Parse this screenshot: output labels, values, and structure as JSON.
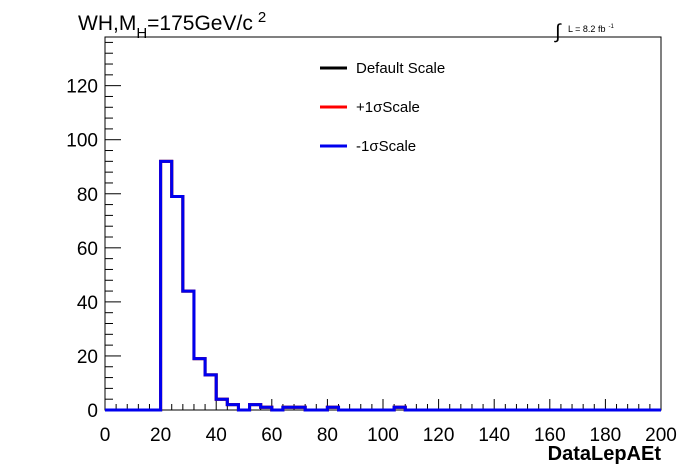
{
  "chart_data": {
    "type": "line",
    "step": true,
    "title": {
      "text": "WH,M",
      "subscript": "H",
      "rest": "=175GeV/c",
      "superscript": "2"
    },
    "annotation": {
      "integral_symbol": "∫",
      "text": "L = 8.2 fb",
      "superscript": "-1"
    },
    "xlabel": "DataLepAEt",
    "ylabel": "",
    "xlim": [
      0,
      200
    ],
    "ylim": [
      0,
      138
    ],
    "xticks": [
      0,
      20,
      40,
      60,
      80,
      100,
      120,
      140,
      160,
      180,
      200
    ],
    "yticks": [
      0,
      20,
      40,
      60,
      80,
      100,
      120
    ],
    "grid": false,
    "legend_position": "top-center",
    "bin_width": 4,
    "x": [
      0,
      4,
      8,
      12,
      16,
      20,
      24,
      28,
      32,
      36,
      40,
      44,
      48,
      52,
      56,
      60,
      64,
      68,
      72,
      76,
      80,
      84,
      88,
      92,
      96,
      100,
      104,
      108,
      112,
      116,
      120,
      124,
      128,
      132,
      136,
      140,
      144,
      148,
      152,
      156,
      160,
      164,
      168,
      172,
      176,
      180,
      184,
      188,
      192,
      196
    ],
    "series": [
      {
        "name": "Default Scale",
        "color": "#000000",
        "values": [
          0,
          0,
          0,
          0,
          0,
          92,
          79,
          44,
          19,
          13,
          4,
          2,
          0,
          2,
          1,
          0,
          1,
          1,
          0,
          0,
          1,
          0,
          0,
          0,
          0,
          0,
          1,
          0,
          0,
          0,
          0,
          0,
          0,
          0,
          0,
          0,
          0,
          0,
          0,
          0,
          0,
          0,
          0,
          0,
          0,
          0,
          0,
          0,
          0,
          0
        ]
      },
      {
        "name": "+1σScale",
        "color": "#ff0000",
        "values": [
          0,
          0,
          0,
          0,
          0,
          92,
          79,
          44,
          19,
          13,
          4,
          2,
          0,
          2,
          1,
          0,
          1,
          1,
          0,
          0,
          1,
          0,
          0,
          0,
          0,
          0,
          1,
          0,
          0,
          0,
          0,
          0,
          0,
          0,
          0,
          0,
          0,
          0,
          0,
          0,
          0,
          0,
          0,
          0,
          0,
          0,
          0,
          0,
          0,
          0
        ]
      },
      {
        "name": "-1σScale",
        "color": "#0000ee",
        "values": [
          0,
          0,
          0,
          0,
          0,
          92,
          79,
          44,
          19,
          13,
          4,
          2,
          0,
          2,
          1,
          0,
          1,
          1,
          0,
          0,
          1,
          0,
          0,
          0,
          0,
          0,
          1,
          0,
          0,
          0,
          0,
          0,
          0,
          0,
          0,
          0,
          0,
          0,
          0,
          0,
          0,
          0,
          0,
          0,
          0,
          0,
          0,
          0,
          0,
          0
        ]
      }
    ]
  }
}
